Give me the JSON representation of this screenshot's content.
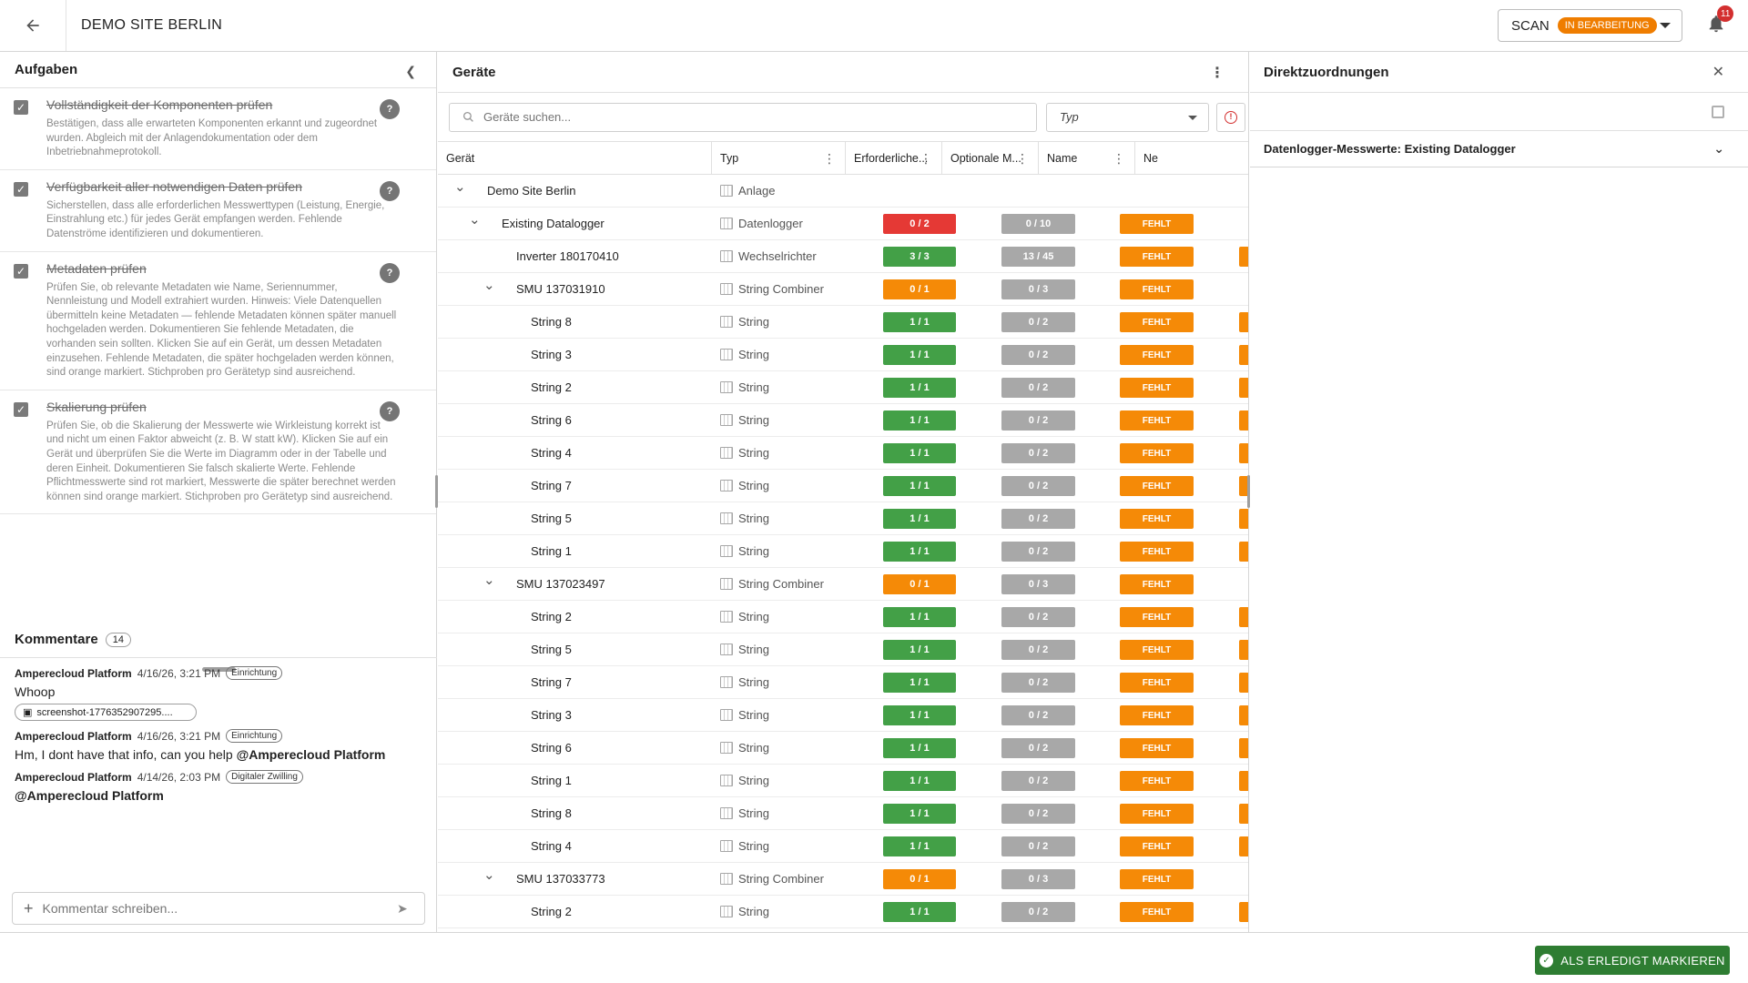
{
  "header": {
    "title": "DEMO SITE BERLIN",
    "scan_label": "SCAN",
    "scan_status": "IN BEARBEITUNG",
    "notification_count": "11"
  },
  "tasks": {
    "title": "Aufgaben",
    "items": [
      {
        "title": "Vollständigkeit der Komponenten prüfen",
        "desc": "Bestätigen, dass alle erwarteten Komponenten erkannt und zugeordnet wurden. Abgleich mit der Anlagendokumentation oder dem Inbetriebnahmeprotokoll."
      },
      {
        "title": "Verfügbarkeit aller notwendigen Daten prüfen",
        "desc": "Sicherstellen, dass alle erforderlichen Messwerttypen (Leistung, Energie, Einstrahlung etc.) für jedes Gerät empfangen werden. Fehlende Datenströme identifizieren und dokumentieren."
      },
      {
        "title": "Metadaten prüfen",
        "desc": "Prüfen Sie, ob relevante Metadaten wie Name, Seriennummer, Nennleistung und Modell extrahiert wurden. Hinweis: Viele Datenquellen übermitteln keine Metadaten — fehlende Metadaten können später manuell hochgeladen werden. Dokumentieren Sie fehlende Metadaten, die vorhanden sein sollten. Klicken Sie auf ein Gerät, um dessen Metadaten einzusehen. Fehlende Metadaten, die später hochgeladen werden können, sind orange markiert. Stichproben pro Gerätetyp sind ausreichend."
      },
      {
        "title": "Skalierung prüfen",
        "desc": "Prüfen Sie, ob die Skalierung der Messwerte wie Wirkleistung korrekt ist und nicht um einen Faktor abweicht (z. B. W statt kW). Klicken Sie auf ein Gerät und überprüfen Sie die Werte im Diagramm oder in der Tabelle und deren Einheit. Dokumentieren Sie falsch skalierte Werte. Fehlende Pflichtmesswerte sind rot markiert, Messwerte die später berechnet werden können sind orange markiert. Stichproben pro Gerätetyp sind ausreichend."
      }
    ]
  },
  "comments": {
    "title": "Kommentare",
    "count": "14",
    "items": [
      {
        "author": "Amperecloud Platform",
        "time": "4/16/26, 3:21 PM",
        "tag": "Einrichtung",
        "text": "Whoop",
        "attachment": "screenshot-1776352907295...."
      },
      {
        "author": "Amperecloud Platform",
        "time": "4/16/26, 3:21 PM",
        "tag": "Einrichtung",
        "text": "Hm, I dont have that info, can you help ",
        "mention": "@Amperecloud Platform"
      },
      {
        "author": "Amperecloud Platform",
        "time": "4/14/26, 2:03 PM",
        "tag": "Digitaler Zwilling",
        "text": "",
        "mention": "@Amperecloud Platform"
      }
    ],
    "placeholder": "Kommentar schreiben..."
  },
  "devices": {
    "title": "Geräte",
    "search_placeholder": "Geräte suchen...",
    "type_filter": "Typ",
    "columns": [
      "Gerät",
      "Typ",
      "Erforderliche...",
      "Optionale M...",
      "Name",
      "Ne"
    ],
    "rows": [
      {
        "level": 0,
        "expand": true,
        "name": "Demo Site Berlin",
        "type": "Anlage"
      },
      {
        "level": 1,
        "expand": true,
        "name": "Existing Datalogger",
        "type": "Datenlogger",
        "req": "0 / 2",
        "req_color": "red",
        "opt": "0 / 10",
        "status": "FEHLT"
      },
      {
        "level": 2,
        "expand": false,
        "name": "Inverter 180170410",
        "type": "Wechselrichter",
        "req": "3 / 3",
        "req_color": "green",
        "opt": "13 / 45",
        "status": "FEHLT",
        "extra": true
      },
      {
        "level": 2,
        "expand": true,
        "name": "SMU 137031910",
        "type": "String Combiner",
        "req": "0 / 1",
        "req_color": "orange",
        "opt": "0 / 3",
        "status": "FEHLT"
      },
      {
        "level": 3,
        "name": "String 8",
        "type": "String",
        "req": "1 / 1",
        "req_color": "green",
        "opt": "0 / 2",
        "status": "FEHLT",
        "extra": true
      },
      {
        "level": 3,
        "name": "String 3",
        "type": "String",
        "req": "1 / 1",
        "req_color": "green",
        "opt": "0 / 2",
        "status": "FEHLT",
        "extra": true
      },
      {
        "level": 3,
        "name": "String 2",
        "type": "String",
        "req": "1 / 1",
        "req_color": "green",
        "opt": "0 / 2",
        "status": "FEHLT",
        "extra": true
      },
      {
        "level": 3,
        "name": "String 6",
        "type": "String",
        "req": "1 / 1",
        "req_color": "green",
        "opt": "0 / 2",
        "status": "FEHLT",
        "extra": true
      },
      {
        "level": 3,
        "name": "String 4",
        "type": "String",
        "req": "1 / 1",
        "req_color": "green",
        "opt": "0 / 2",
        "status": "FEHLT",
        "extra": true
      },
      {
        "level": 3,
        "name": "String 7",
        "type": "String",
        "req": "1 / 1",
        "req_color": "green",
        "opt": "0 / 2",
        "status": "FEHLT",
        "extra": true
      },
      {
        "level": 3,
        "name": "String 5",
        "type": "String",
        "req": "1 / 1",
        "req_color": "green",
        "opt": "0 / 2",
        "status": "FEHLT",
        "extra": true
      },
      {
        "level": 3,
        "name": "String 1",
        "type": "String",
        "req": "1 / 1",
        "req_color": "green",
        "opt": "0 / 2",
        "status": "FEHLT",
        "extra": true
      },
      {
        "level": 2,
        "expand": true,
        "name": "SMU 137023497",
        "type": "String Combiner",
        "req": "0 / 1",
        "req_color": "orange",
        "opt": "0 / 3",
        "status": "FEHLT"
      },
      {
        "level": 3,
        "name": "String 2",
        "type": "String",
        "req": "1 / 1",
        "req_color": "green",
        "opt": "0 / 2",
        "status": "FEHLT",
        "extra": true
      },
      {
        "level": 3,
        "name": "String 5",
        "type": "String",
        "req": "1 / 1",
        "req_color": "green",
        "opt": "0 / 2",
        "status": "FEHLT",
        "extra": true
      },
      {
        "level": 3,
        "name": "String 7",
        "type": "String",
        "req": "1 / 1",
        "req_color": "green",
        "opt": "0 / 2",
        "status": "FEHLT",
        "extra": true
      },
      {
        "level": 3,
        "name": "String 3",
        "type": "String",
        "req": "1 / 1",
        "req_color": "green",
        "opt": "0 / 2",
        "status": "FEHLT",
        "extra": true
      },
      {
        "level": 3,
        "name": "String 6",
        "type": "String",
        "req": "1 / 1",
        "req_color": "green",
        "opt": "0 / 2",
        "status": "FEHLT",
        "extra": true
      },
      {
        "level": 3,
        "name": "String 1",
        "type": "String",
        "req": "1 / 1",
        "req_color": "green",
        "opt": "0 / 2",
        "status": "FEHLT",
        "extra": true
      },
      {
        "level": 3,
        "name": "String 8",
        "type": "String",
        "req": "1 / 1",
        "req_color": "green",
        "opt": "0 / 2",
        "status": "FEHLT",
        "extra": true
      },
      {
        "level": 3,
        "name": "String 4",
        "type": "String",
        "req": "1 / 1",
        "req_color": "green",
        "opt": "0 / 2",
        "status": "FEHLT",
        "extra": true
      },
      {
        "level": 2,
        "expand": true,
        "name": "SMU 137033773",
        "type": "String Combiner",
        "req": "0 / 1",
        "req_color": "orange",
        "opt": "0 / 3",
        "status": "FEHLT"
      },
      {
        "level": 3,
        "name": "String 2",
        "type": "String",
        "req": "1 / 1",
        "req_color": "green",
        "opt": "0 / 2",
        "status": "FEHLT",
        "extra": true
      }
    ]
  },
  "assignments": {
    "title": "Direktzuordnungen",
    "item": "Datenlogger-Messwerte: Existing Datalogger"
  },
  "footer": {
    "done_label": "ALS ERLEDIGT MARKIEREN"
  },
  "colors": {
    "red": "#e53935",
    "green": "#43a047",
    "orange": "#f58a07",
    "grey": "#a8a8a8",
    "done": "#2e7d32"
  }
}
